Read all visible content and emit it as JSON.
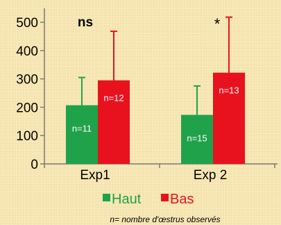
{
  "chart_data": {
    "type": "bar",
    "categories": [
      "Exp1",
      "Exp 2"
    ],
    "series": [
      {
        "name": "Haut",
        "color": "#1fa24a",
        "values": [
          207,
          173
        ],
        "error_upper": [
          305,
          275
        ],
        "labels": [
          "n=11",
          "n=15"
        ]
      },
      {
        "name": "Bas",
        "color": "#e8121e",
        "values": [
          295,
          322
        ],
        "error_upper": [
          468,
          518
        ],
        "labels": [
          "n=12",
          "n=13"
        ]
      }
    ],
    "ylim": [
      0,
      500
    ],
    "y_ticks": [
      "0",
      "100",
      "200",
      "300",
      "400",
      "500"
    ],
    "annotations": [
      {
        "category": 0,
        "text": "ns",
        "bold": true
      },
      {
        "category": 1,
        "text": "*",
        "bold": false
      }
    ],
    "legend_position": "bottom",
    "grid": false,
    "footnote": "n= nombre d'œstrus observés"
  }
}
